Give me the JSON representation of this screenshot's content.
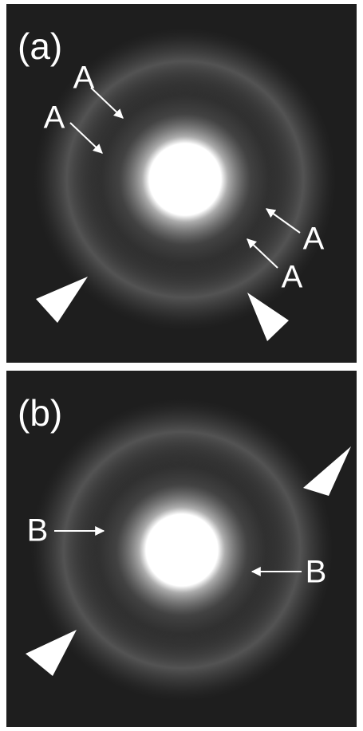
{
  "panels": [
    {
      "label": "(a)",
      "annotations": [
        "A",
        "A",
        "A",
        "A"
      ]
    },
    {
      "label": "(b)",
      "annotations": [
        "B",
        "B"
      ]
    }
  ]
}
